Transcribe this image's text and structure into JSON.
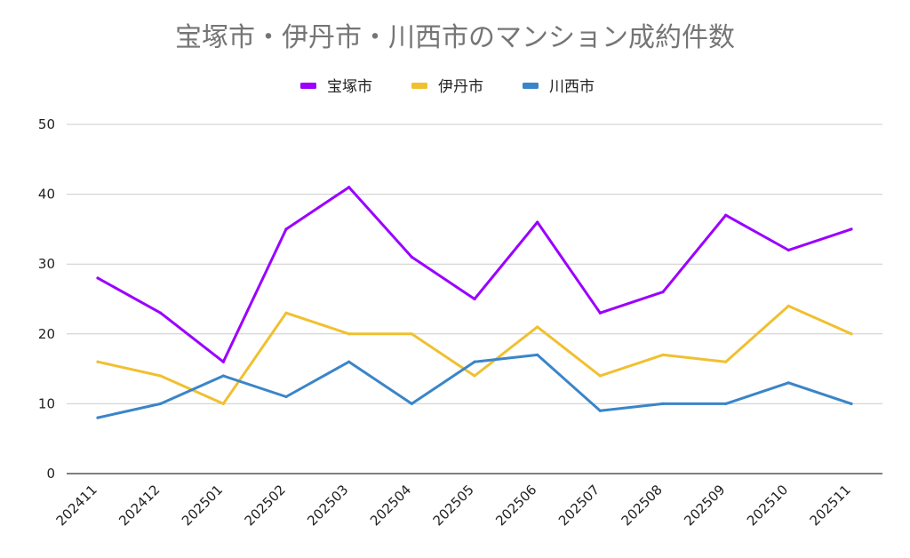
{
  "chart_data": {
    "type": "line",
    "title": "宝塚市・伊丹市・川西市のマンション成約件数",
    "xlabel": "",
    "ylabel": "",
    "ylim": [
      0,
      50
    ],
    "yticks": [
      0,
      10,
      20,
      30,
      40,
      50
    ],
    "grid": true,
    "legend_position": "top-center",
    "categories": [
      "202411",
      "202412",
      "202501",
      "202502",
      "202503",
      "202504",
      "202505",
      "202506",
      "202507",
      "202508",
      "202509",
      "202510",
      "202511"
    ],
    "series": [
      {
        "name": "宝塚市",
        "color": "#9a00ff",
        "values": [
          28,
          23,
          16,
          35,
          41,
          31,
          25,
          36,
          23,
          26,
          37,
          32,
          35
        ]
      },
      {
        "name": "伊丹市",
        "color": "#f0c030",
        "values": [
          16,
          14,
          10,
          23,
          20,
          20,
          14,
          21,
          14,
          17,
          16,
          24,
          20
        ]
      },
      {
        "name": "川西市",
        "color": "#3a85c9",
        "values": [
          8,
          10,
          14,
          11,
          16,
          10,
          16,
          17,
          9,
          10,
          10,
          13,
          10
        ]
      }
    ]
  }
}
